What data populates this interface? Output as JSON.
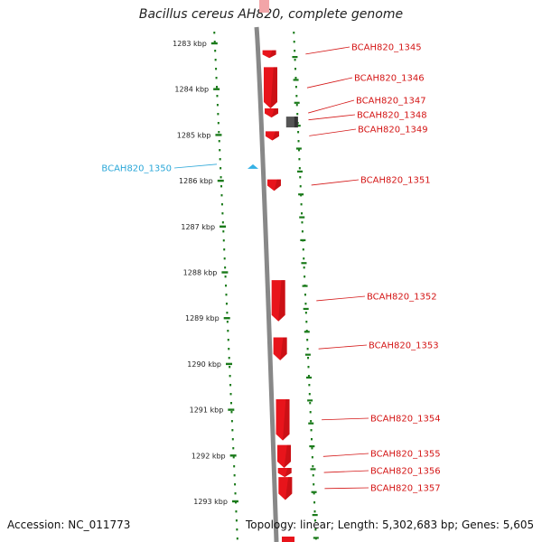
{
  "title": "Bacillus cereus AH820, complete genome",
  "footer": {
    "accession": "Accession: NC_011773",
    "summary": "Topology: linear; Length: 5,302,683 bp; Genes: 5,605"
  },
  "colors": {
    "gene": "#e8141b",
    "gene_dark": "#a80c10",
    "rna": "#35b1e5",
    "other": "#555555",
    "backbone": "#888888",
    "ticks": "#1a7a1a",
    "label_gene": "#d41616",
    "label_rna": "#2aa7d8"
  },
  "ruler": {
    "unit": "kbp",
    "ticks": [
      {
        "kbp": 1283,
        "label": "1283 kbp"
      },
      {
        "kbp": 1284,
        "label": "1284 kbp"
      },
      {
        "kbp": 1285,
        "label": "1285 kbp"
      },
      {
        "kbp": 1286,
        "label": "1286 kbp"
      },
      {
        "kbp": 1287,
        "label": "1287 kbp"
      },
      {
        "kbp": 1288,
        "label": "1288 kbp"
      },
      {
        "kbp": 1289,
        "label": "1289 kbp"
      },
      {
        "kbp": 1290,
        "label": "1290 kbp"
      },
      {
        "kbp": 1291,
        "label": "1291 kbp"
      },
      {
        "kbp": 1292,
        "label": "1292 kbp"
      },
      {
        "kbp": 1293,
        "label": "1293 kbp"
      }
    ]
  },
  "features": [
    {
      "name": "BCAH820_1345",
      "type": "gene",
      "start_kbp": 1283.15,
      "end_kbp": 1283.32
    },
    {
      "name": "BCAH820_1346",
      "type": "gene",
      "start_kbp": 1283.52,
      "end_kbp": 1284.42
    },
    {
      "name": "BCAH820_1347",
      "type": "gene",
      "start_kbp": 1284.42,
      "end_kbp": 1284.62
    },
    {
      "name": "BCAH820_1348",
      "type": "other",
      "start_kbp": 1284.52,
      "end_kbp": 1284.82
    },
    {
      "name": "BCAH820_1349",
      "type": "gene",
      "start_kbp": 1284.92,
      "end_kbp": 1285.12
    },
    {
      "name": "BCAH820_1350",
      "type": "rna",
      "start_kbp": 1285.62,
      "end_kbp": 1285.72
    },
    {
      "name": "BCAH820_1351",
      "type": "gene",
      "start_kbp": 1285.97,
      "end_kbp": 1286.22
    },
    {
      "name": "BCAH820_1352",
      "type": "gene",
      "start_kbp": 1288.17,
      "end_kbp": 1289.07
    },
    {
      "name": "BCAH820_1353",
      "type": "gene",
      "start_kbp": 1289.42,
      "end_kbp": 1289.92
    },
    {
      "name": "BCAH820_1354",
      "type": "gene",
      "start_kbp": 1290.77,
      "end_kbp": 1291.67
    },
    {
      "name": "BCAH820_1355",
      "type": "gene",
      "start_kbp": 1291.77,
      "end_kbp": 1292.27
    },
    {
      "name": "BCAH820_1356",
      "type": "gene",
      "start_kbp": 1292.27,
      "end_kbp": 1292.47
    },
    {
      "name": "BCAH820_1357",
      "type": "gene",
      "start_kbp": 1292.47,
      "end_kbp": 1292.97
    }
  ]
}
